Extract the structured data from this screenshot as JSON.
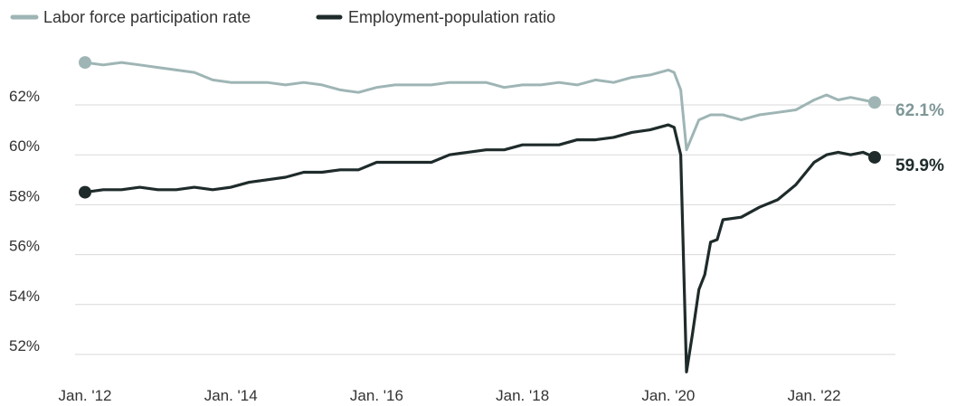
{
  "colors": {
    "lfpr": "#9fb5b5",
    "epop": "#1f2b2b",
    "grid": "#d9d9d9",
    "text": "#333333"
  },
  "legend": {
    "lfpr_label": "Labor force participation rate",
    "epop_label": "Employment-population ratio"
  },
  "end_labels": {
    "lfpr": "62.1%",
    "epop": "59.9%"
  },
  "chart_data": {
    "type": "line",
    "title": "",
    "xlabel": "",
    "ylabel": "",
    "ylim": [
      51.3,
      64.5
    ],
    "xlim": [
      2012.0,
      2022.83
    ],
    "grid": "horizontal",
    "legend_position": "top-left",
    "x_ticks": [
      {
        "x": 2012,
        "label": "Jan. '12"
      },
      {
        "x": 2014,
        "label": "Jan. '14"
      },
      {
        "x": 2016,
        "label": "Jan. '16"
      },
      {
        "x": 2018,
        "label": "Jan. '18"
      },
      {
        "x": 2020,
        "label": "Jan. '20"
      },
      {
        "x": 2022,
        "label": "Jan. '22"
      }
    ],
    "y_ticks": [
      {
        "y": 52,
        "label": "52%"
      },
      {
        "y": 54,
        "label": "54%"
      },
      {
        "y": 56,
        "label": "56%"
      },
      {
        "y": 58,
        "label": "58%"
      },
      {
        "y": 60,
        "label": "60%"
      },
      {
        "y": 62,
        "label": "62%"
      }
    ],
    "series": [
      {
        "name": "Labor force participation rate",
        "color": "#9fb5b5",
        "points": [
          [
            2012.0,
            63.7
          ],
          [
            2012.25,
            63.6
          ],
          [
            2012.5,
            63.7
          ],
          [
            2012.75,
            63.6
          ],
          [
            2013.0,
            63.5
          ],
          [
            2013.25,
            63.4
          ],
          [
            2013.5,
            63.3
          ],
          [
            2013.75,
            63.0
          ],
          [
            2014.0,
            62.9
          ],
          [
            2014.25,
            62.9
          ],
          [
            2014.5,
            62.9
          ],
          [
            2014.75,
            62.8
          ],
          [
            2015.0,
            62.9
          ],
          [
            2015.25,
            62.8
          ],
          [
            2015.5,
            62.6
          ],
          [
            2015.75,
            62.5
          ],
          [
            2016.0,
            62.7
          ],
          [
            2016.25,
            62.8
          ],
          [
            2016.5,
            62.8
          ],
          [
            2016.75,
            62.8
          ],
          [
            2017.0,
            62.9
          ],
          [
            2017.25,
            62.9
          ],
          [
            2017.5,
            62.9
          ],
          [
            2017.75,
            62.7
          ],
          [
            2018.0,
            62.8
          ],
          [
            2018.25,
            62.8
          ],
          [
            2018.5,
            62.9
          ],
          [
            2018.75,
            62.8
          ],
          [
            2019.0,
            63.0
          ],
          [
            2019.25,
            62.9
          ],
          [
            2019.5,
            63.1
          ],
          [
            2019.75,
            63.2
          ],
          [
            2020.0,
            63.4
          ],
          [
            2020.08,
            63.3
          ],
          [
            2020.17,
            62.6
          ],
          [
            2020.25,
            60.2
          ],
          [
            2020.42,
            61.4
          ],
          [
            2020.58,
            61.6
          ],
          [
            2020.75,
            61.6
          ],
          [
            2021.0,
            61.4
          ],
          [
            2021.25,
            61.6
          ],
          [
            2021.5,
            61.7
          ],
          [
            2021.75,
            61.8
          ],
          [
            2022.0,
            62.2
          ],
          [
            2022.17,
            62.4
          ],
          [
            2022.33,
            62.2
          ],
          [
            2022.5,
            62.3
          ],
          [
            2022.67,
            62.2
          ],
          [
            2022.83,
            62.1
          ]
        ]
      },
      {
        "name": "Employment-population ratio",
        "color": "#1f2b2b",
        "points": [
          [
            2012.0,
            58.5
          ],
          [
            2012.25,
            58.6
          ],
          [
            2012.5,
            58.6
          ],
          [
            2012.75,
            58.7
          ],
          [
            2013.0,
            58.6
          ],
          [
            2013.25,
            58.6
          ],
          [
            2013.5,
            58.7
          ],
          [
            2013.75,
            58.6
          ],
          [
            2014.0,
            58.7
          ],
          [
            2014.25,
            58.9
          ],
          [
            2014.5,
            59.0
          ],
          [
            2014.75,
            59.1
          ],
          [
            2015.0,
            59.3
          ],
          [
            2015.25,
            59.3
          ],
          [
            2015.5,
            59.4
          ],
          [
            2015.75,
            59.4
          ],
          [
            2016.0,
            59.7
          ],
          [
            2016.25,
            59.7
          ],
          [
            2016.5,
            59.7
          ],
          [
            2016.75,
            59.7
          ],
          [
            2017.0,
            60.0
          ],
          [
            2017.25,
            60.1
          ],
          [
            2017.5,
            60.2
          ],
          [
            2017.75,
            60.2
          ],
          [
            2018.0,
            60.4
          ],
          [
            2018.25,
            60.4
          ],
          [
            2018.5,
            60.4
          ],
          [
            2018.75,
            60.6
          ],
          [
            2019.0,
            60.6
          ],
          [
            2019.25,
            60.7
          ],
          [
            2019.5,
            60.9
          ],
          [
            2019.75,
            61.0
          ],
          [
            2020.0,
            61.2
          ],
          [
            2020.08,
            61.1
          ],
          [
            2020.17,
            60.0
          ],
          [
            2020.25,
            51.3
          ],
          [
            2020.33,
            52.8
          ],
          [
            2020.42,
            54.6
          ],
          [
            2020.5,
            55.2
          ],
          [
            2020.58,
            56.5
          ],
          [
            2020.67,
            56.6
          ],
          [
            2020.75,
            57.4
          ],
          [
            2021.0,
            57.5
          ],
          [
            2021.25,
            57.9
          ],
          [
            2021.5,
            58.2
          ],
          [
            2021.75,
            58.8
          ],
          [
            2022.0,
            59.7
          ],
          [
            2022.17,
            60.0
          ],
          [
            2022.33,
            60.1
          ],
          [
            2022.5,
            60.0
          ],
          [
            2022.67,
            60.1
          ],
          [
            2022.83,
            59.9
          ]
        ]
      }
    ]
  }
}
